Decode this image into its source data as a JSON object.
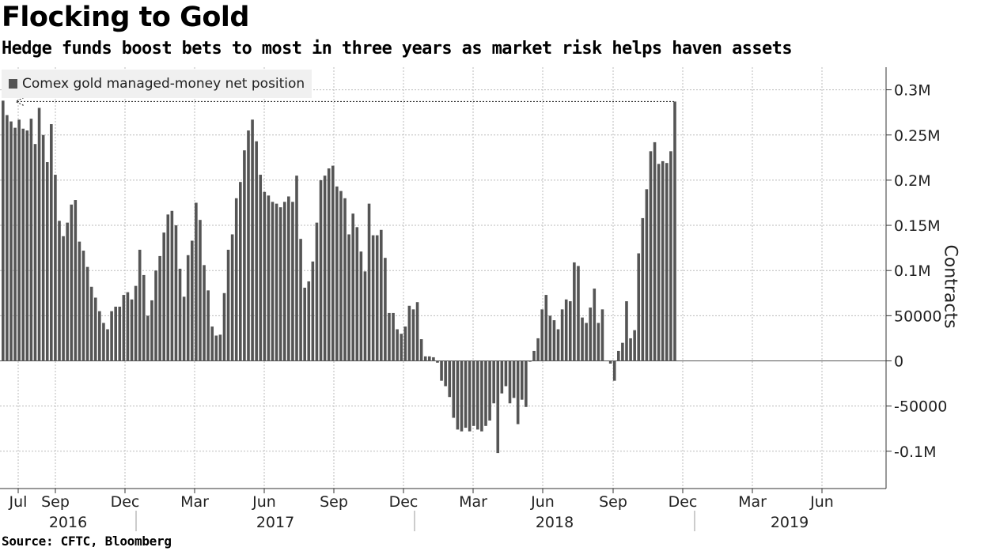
{
  "title": "Flocking to Gold",
  "subtitle": "Hedge funds boost bets to most in three years as market risk helps haven assets",
  "source": "Source: CFTC, Bloomberg",
  "colors": {
    "bar": "#555555",
    "grid": "#bbbbbb",
    "legend_bg": "#f0f0f0"
  },
  "chart_data": {
    "type": "bar",
    "legend": "Comex gold managed-money net position",
    "ylabel": "Contracts",
    "ylim": [
      -140000,
      300000
    ],
    "yticks": [
      {
        "value": 300000,
        "label": "0.3M"
      },
      {
        "value": 250000,
        "label": "0.25M"
      },
      {
        "value": 200000,
        "label": "0.2M"
      },
      {
        "value": 150000,
        "label": "0.15M"
      },
      {
        "value": 100000,
        "label": "0.1M"
      },
      {
        "value": 50000,
        "label": "50000"
      },
      {
        "value": 0,
        "label": "0"
      },
      {
        "value": -50000,
        "label": "-50000"
      },
      {
        "value": -100000,
        "label": "-0.1M"
      }
    ],
    "month_ticks": [
      "Jul",
      "Sep",
      "Dec",
      "Mar",
      "Jun",
      "Sep",
      "Dec",
      "Mar",
      "Jun",
      "Sep",
      "Dec",
      "Mar",
      "Jun"
    ],
    "year_labels": [
      "2016",
      "2017",
      "2018",
      "2019"
    ],
    "annotation": "latest value marked with dotted arrow to left axis",
    "values": [
      288000,
      272000,
      265000,
      258000,
      267000,
      257000,
      255000,
      268000,
      240000,
      280000,
      250000,
      220000,
      262000,
      206000,
      155000,
      138000,
      153000,
      173000,
      178000,
      132000,
      122000,
      104000,
      82000,
      70000,
      55000,
      42000,
      35000,
      55000,
      60000,
      60000,
      73000,
      76000,
      68000,
      83000,
      123000,
      95000,
      50000,
      67000,
      100000,
      116000,
      142000,
      162000,
      166000,
      150000,
      102000,
      71000,
      117000,
      133000,
      175000,
      156000,
      106000,
      78000,
      38000,
      28000,
      29000,
      75000,
      123000,
      140000,
      180000,
      198000,
      233000,
      255000,
      267000,
      243000,
      206000,
      187000,
      183000,
      176000,
      174000,
      170000,
      176000,
      182000,
      176000,
      205000,
      135000,
      81000,
      88000,
      110000,
      153000,
      200000,
      205000,
      213000,
      216000,
      193000,
      188000,
      180000,
      140000,
      163000,
      148000,
      121000,
      99000,
      174000,
      139000,
      139000,
      145000,
      114000,
      53000,
      53000,
      35000,
      30000,
      38000,
      61000,
      57000,
      65000,
      24000,
      5000,
      5000,
      4000,
      -2000,
      -22000,
      -28000,
      -40000,
      -63000,
      -76000,
      -78000,
      -74000,
      -78000,
      -72000,
      -76000,
      -78000,
      -72000,
      -66000,
      -47000,
      -102000,
      -36000,
      -28000,
      -47000,
      -41000,
      -70000,
      -43000,
      -51000,
      -1000,
      11000,
      25000,
      57000,
      73000,
      50000,
      45000,
      35000,
      57000,
      68000,
      66000,
      109000,
      105000,
      48000,
      42000,
      59000,
      80000,
      42000,
      57000,
      0,
      -3000,
      -22000,
      11000,
      20000,
      66000,
      25000,
      34000,
      119000,
      158000,
      190000,
      232000,
      242000,
      218000,
      221000,
      219000,
      232000,
      287000
    ]
  }
}
